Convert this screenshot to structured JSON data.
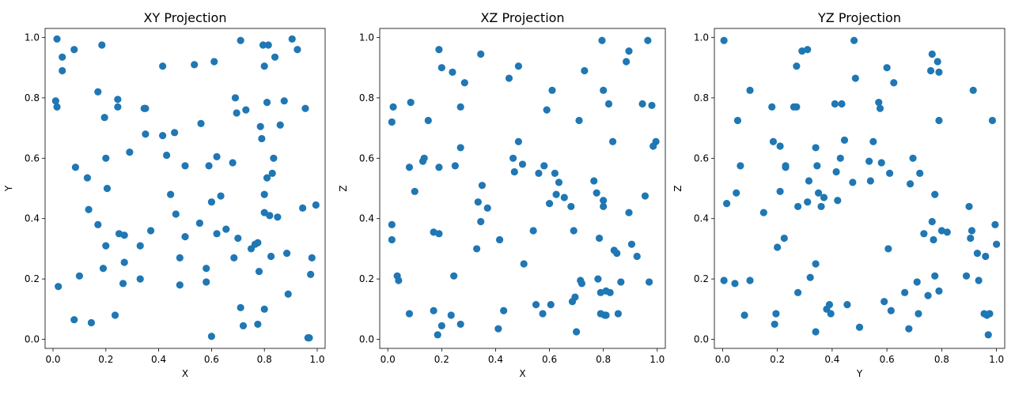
{
  "chart_data": [
    {
      "type": "scatter",
      "title": "XY Projection",
      "xlabel": "X",
      "ylabel": "Y",
      "xlim": [
        -0.03,
        1.03
      ],
      "ylim": [
        -0.03,
        1.03
      ],
      "xticks": [
        0.0,
        0.2,
        0.4,
        0.6,
        0.8,
        1.0
      ],
      "yticks": [
        0.0,
        0.2,
        0.4,
        0.6,
        0.8,
        1.0
      ],
      "xticklabels": [
        "0.0",
        "0.2",
        "0.4",
        "0.6",
        "0.8",
        "1.0"
      ],
      "yticklabels": [
        "0.0",
        "0.2",
        "0.4",
        "0.6",
        "0.8",
        "1.0"
      ],
      "color": "#1f77b4",
      "grid": false,
      "points": [
        [
          0.01,
          0.79
        ],
        [
          0.015,
          0.995
        ],
        [
          0.015,
          0.77
        ],
        [
          0.035,
          0.935
        ],
        [
          0.035,
          0.89
        ],
        [
          0.02,
          0.175
        ],
        [
          0.08,
          0.96
        ],
        [
          0.085,
          0.57
        ],
        [
          0.08,
          0.065
        ],
        [
          0.1,
          0.21
        ],
        [
          0.13,
          0.535
        ],
        [
          0.135,
          0.43
        ],
        [
          0.145,
          0.055
        ],
        [
          0.17,
          0.82
        ],
        [
          0.17,
          0.38
        ],
        [
          0.185,
          0.975
        ],
        [
          0.19,
          0.235
        ],
        [
          0.195,
          0.735
        ],
        [
          0.2,
          0.31
        ],
        [
          0.2,
          0.6
        ],
        [
          0.205,
          0.5
        ],
        [
          0.235,
          0.08
        ],
        [
          0.245,
          0.795
        ],
        [
          0.245,
          0.77
        ],
        [
          0.25,
          0.35
        ],
        [
          0.265,
          0.185
        ],
        [
          0.27,
          0.345
        ],
        [
          0.27,
          0.255
        ],
        [
          0.29,
          0.62
        ],
        [
          0.33,
          0.31
        ],
        [
          0.33,
          0.2
        ],
        [
          0.345,
          0.765
        ],
        [
          0.35,
          0.765
        ],
        [
          0.35,
          0.68
        ],
        [
          0.37,
          0.36
        ],
        [
          0.415,
          0.905
        ],
        [
          0.415,
          0.675
        ],
        [
          0.43,
          0.61
        ],
        [
          0.445,
          0.48
        ],
        [
          0.46,
          0.685
        ],
        [
          0.465,
          0.415
        ],
        [
          0.48,
          0.27
        ],
        [
          0.48,
          0.18
        ],
        [
          0.5,
          0.575
        ],
        [
          0.5,
          0.34
        ],
        [
          0.535,
          0.91
        ],
        [
          0.555,
          0.385
        ],
        [
          0.56,
          0.715
        ],
        [
          0.58,
          0.235
        ],
        [
          0.58,
          0.19
        ],
        [
          0.59,
          0.575
        ],
        [
          0.6,
          0.455
        ],
        [
          0.6,
          0.01
        ],
        [
          0.61,
          0.92
        ],
        [
          0.62,
          0.605
        ],
        [
          0.62,
          0.35
        ],
        [
          0.635,
          0.475
        ],
        [
          0.655,
          0.365
        ],
        [
          0.68,
          0.585
        ],
        [
          0.685,
          0.27
        ],
        [
          0.69,
          0.8
        ],
        [
          0.695,
          0.75
        ],
        [
          0.7,
          0.335
        ],
        [
          0.71,
          0.99
        ],
        [
          0.71,
          0.105
        ],
        [
          0.72,
          0.045
        ],
        [
          0.73,
          0.76
        ],
        [
          0.75,
          0.3
        ],
        [
          0.765,
          0.315
        ],
        [
          0.775,
          0.32
        ],
        [
          0.775,
          0.05
        ],
        [
          0.78,
          0.225
        ],
        [
          0.785,
          0.705
        ],
        [
          0.79,
          0.665
        ],
        [
          0.795,
          0.975
        ],
        [
          0.8,
          0.905
        ],
        [
          0.8,
          0.48
        ],
        [
          0.8,
          0.42
        ],
        [
          0.8,
          0.1
        ],
        [
          0.81,
          0.785
        ],
        [
          0.81,
          0.535
        ],
        [
          0.815,
          0.975
        ],
        [
          0.82,
          0.41
        ],
        [
          0.825,
          0.275
        ],
        [
          0.83,
          0.55
        ],
        [
          0.835,
          0.6
        ],
        [
          0.84,
          0.935
        ],
        [
          0.85,
          0.405
        ],
        [
          0.86,
          0.71
        ],
        [
          0.875,
          0.79
        ],
        [
          0.885,
          0.285
        ],
        [
          0.89,
          0.15
        ],
        [
          0.905,
          0.995
        ],
        [
          0.925,
          0.96
        ],
        [
          0.945,
          0.435
        ],
        [
          0.955,
          0.765
        ],
        [
          0.965,
          0.005
        ],
        [
          0.97,
          0.005
        ],
        [
          0.975,
          0.215
        ],
        [
          0.98,
          0.27
        ],
        [
          0.995,
          0.445
        ]
      ]
    },
    {
      "type": "scatter",
      "title": "XZ Projection",
      "xlabel": "X",
      "ylabel": "Z",
      "xlim": [
        -0.03,
        1.03
      ],
      "ylim": [
        -0.03,
        1.03
      ],
      "xticks": [
        0.0,
        0.2,
        0.4,
        0.6,
        0.8,
        1.0
      ],
      "yticks": [
        0.0,
        0.2,
        0.4,
        0.6,
        0.8,
        1.0
      ],
      "xticklabels": [
        "0.0",
        "0.2",
        "0.4",
        "0.6",
        "0.8",
        "1.0"
      ],
      "yticklabels": [
        "0.0",
        "0.2",
        "0.4",
        "0.6",
        "0.8",
        "1.0"
      ],
      "color": "#1f77b4",
      "grid": false,
      "points": [
        [
          0.015,
          0.72
        ],
        [
          0.02,
          0.77
        ],
        [
          0.015,
          0.38
        ],
        [
          0.015,
          0.33
        ],
        [
          0.035,
          0.21
        ],
        [
          0.04,
          0.195
        ],
        [
          0.08,
          0.57
        ],
        [
          0.085,
          0.785
        ],
        [
          0.1,
          0.49
        ],
        [
          0.08,
          0.085
        ],
        [
          0.13,
          0.59
        ],
        [
          0.135,
          0.6
        ],
        [
          0.15,
          0.725
        ],
        [
          0.17,
          0.355
        ],
        [
          0.17,
          0.095
        ],
        [
          0.19,
          0.96
        ],
        [
          0.19,
          0.57
        ],
        [
          0.19,
          0.35
        ],
        [
          0.185,
          0.015
        ],
        [
          0.2,
          0.9
        ],
        [
          0.2,
          0.045
        ],
        [
          0.24,
          0.885
        ],
        [
          0.235,
          0.08
        ],
        [
          0.245,
          0.21
        ],
        [
          0.25,
          0.575
        ],
        [
          0.27,
          0.77
        ],
        [
          0.27,
          0.635
        ],
        [
          0.27,
          0.05
        ],
        [
          0.285,
          0.85
        ],
        [
          0.335,
          0.455
        ],
        [
          0.33,
          0.3
        ],
        [
          0.345,
          0.945
        ],
        [
          0.345,
          0.39
        ],
        [
          0.35,
          0.51
        ],
        [
          0.37,
          0.435
        ],
        [
          0.41,
          0.035
        ],
        [
          0.415,
          0.33
        ],
        [
          0.43,
          0.095
        ],
        [
          0.45,
          0.865
        ],
        [
          0.465,
          0.6
        ],
        [
          0.47,
          0.555
        ],
        [
          0.485,
          0.905
        ],
        [
          0.485,
          0.655
        ],
        [
          0.5,
          0.58
        ],
        [
          0.505,
          0.25
        ],
        [
          0.54,
          0.36
        ],
        [
          0.55,
          0.115
        ],
        [
          0.56,
          0.55
        ],
        [
          0.575,
          0.085
        ],
        [
          0.58,
          0.575
        ],
        [
          0.59,
          0.76
        ],
        [
          0.6,
          0.45
        ],
        [
          0.605,
          0.115
        ],
        [
          0.61,
          0.825
        ],
        [
          0.62,
          0.55
        ],
        [
          0.625,
          0.48
        ],
        [
          0.635,
          0.52
        ],
        [
          0.655,
          0.47
        ],
        [
          0.68,
          0.44
        ],
        [
          0.685,
          0.125
        ],
        [
          0.69,
          0.36
        ],
        [
          0.695,
          0.14
        ],
        [
          0.7,
          0.025
        ],
        [
          0.71,
          0.725
        ],
        [
          0.715,
          0.195
        ],
        [
          0.72,
          0.185
        ],
        [
          0.73,
          0.89
        ],
        [
          0.765,
          0.525
        ],
        [
          0.775,
          0.485
        ],
        [
          0.78,
          0.2
        ],
        [
          0.785,
          0.335
        ],
        [
          0.79,
          0.085
        ],
        [
          0.79,
          0.155
        ],
        [
          0.795,
          0.99
        ],
        [
          0.8,
          0.825
        ],
        [
          0.8,
          0.46
        ],
        [
          0.8,
          0.44
        ],
        [
          0.805,
          0.08
        ],
        [
          0.81,
          0.08
        ],
        [
          0.81,
          0.16
        ],
        [
          0.82,
          0.78
        ],
        [
          0.825,
          0.155
        ],
        [
          0.835,
          0.655
        ],
        [
          0.84,
          0.295
        ],
        [
          0.85,
          0.285
        ],
        [
          0.855,
          0.085
        ],
        [
          0.865,
          0.19
        ],
        [
          0.885,
          0.92
        ],
        [
          0.895,
          0.955
        ],
        [
          0.895,
          0.42
        ],
        [
          0.905,
          0.315
        ],
        [
          0.925,
          0.275
        ],
        [
          0.945,
          0.78
        ],
        [
          0.955,
          0.475
        ],
        [
          0.965,
          0.99
        ],
        [
          0.97,
          0.19
        ],
        [
          0.98,
          0.775
        ],
        [
          0.985,
          0.64
        ],
        [
          0.995,
          0.655
        ]
      ]
    },
    {
      "type": "scatter",
      "title": "YZ Projection",
      "xlabel": "Y",
      "ylabel": "Z",
      "xlim": [
        -0.03,
        1.03
      ],
      "ylim": [
        -0.03,
        1.03
      ],
      "xticks": [
        0.0,
        0.2,
        0.4,
        0.6,
        0.8,
        1.0
      ],
      "yticks": [
        0.0,
        0.2,
        0.4,
        0.6,
        0.8,
        1.0
      ],
      "xticklabels": [
        "0.0",
        "0.2",
        "0.4",
        "0.6",
        "0.8",
        "1.0"
      ],
      "yticklabels": [
        "0.0",
        "0.2",
        "0.4",
        "0.6",
        "0.8",
        "1.0"
      ],
      "color": "#1f77b4",
      "grid": false,
      "points": [
        [
          0.005,
          0.99
        ],
        [
          0.005,
          0.195
        ],
        [
          0.015,
          0.45
        ],
        [
          0.045,
          0.185
        ],
        [
          0.05,
          0.485
        ],
        [
          0.055,
          0.725
        ],
        [
          0.065,
          0.575
        ],
        [
          0.08,
          0.08
        ],
        [
          0.1,
          0.825
        ],
        [
          0.1,
          0.195
        ],
        [
          0.15,
          0.42
        ],
        [
          0.18,
          0.77
        ],
        [
          0.185,
          0.655
        ],
        [
          0.19,
          0.05
        ],
        [
          0.195,
          0.085
        ],
        [
          0.2,
          0.305
        ],
        [
          0.21,
          0.64
        ],
        [
          0.21,
          0.49
        ],
        [
          0.225,
          0.335
        ],
        [
          0.23,
          0.575
        ],
        [
          0.23,
          0.57
        ],
        [
          0.26,
          0.77
        ],
        [
          0.27,
          0.905
        ],
        [
          0.27,
          0.77
        ],
        [
          0.275,
          0.44
        ],
        [
          0.275,
          0.155
        ],
        [
          0.29,
          0.955
        ],
        [
          0.31,
          0.96
        ],
        [
          0.31,
          0.455
        ],
        [
          0.315,
          0.525
        ],
        [
          0.32,
          0.205
        ],
        [
          0.34,
          0.635
        ],
        [
          0.34,
          0.25
        ],
        [
          0.34,
          0.025
        ],
        [
          0.345,
          0.575
        ],
        [
          0.35,
          0.485
        ],
        [
          0.36,
          0.44
        ],
        [
          0.37,
          0.47
        ],
        [
          0.38,
          0.1
        ],
        [
          0.39,
          0.115
        ],
        [
          0.395,
          0.085
        ],
        [
          0.41,
          0.78
        ],
        [
          0.415,
          0.555
        ],
        [
          0.42,
          0.46
        ],
        [
          0.43,
          0.6
        ],
        [
          0.435,
          0.78
        ],
        [
          0.445,
          0.66
        ],
        [
          0.455,
          0.115
        ],
        [
          0.475,
          0.52
        ],
        [
          0.48,
          0.99
        ],
        [
          0.485,
          0.865
        ],
        [
          0.5,
          0.04
        ],
        [
          0.535,
          0.59
        ],
        [
          0.54,
          0.525
        ],
        [
          0.55,
          0.655
        ],
        [
          0.57,
          0.785
        ],
        [
          0.575,
          0.765
        ],
        [
          0.58,
          0.585
        ],
        [
          0.59,
          0.125
        ],
        [
          0.6,
          0.9
        ],
        [
          0.605,
          0.3
        ],
        [
          0.61,
          0.55
        ],
        [
          0.615,
          0.095
        ],
        [
          0.625,
          0.85
        ],
        [
          0.665,
          0.155
        ],
        [
          0.68,
          0.035
        ],
        [
          0.685,
          0.515
        ],
        [
          0.695,
          0.6
        ],
        [
          0.71,
          0.19
        ],
        [
          0.715,
          0.085
        ],
        [
          0.72,
          0.55
        ],
        [
          0.735,
          0.35
        ],
        [
          0.75,
          0.145
        ],
        [
          0.76,
          0.89
        ],
        [
          0.765,
          0.945
        ],
        [
          0.765,
          0.39
        ],
        [
          0.77,
          0.33
        ],
        [
          0.775,
          0.48
        ],
        [
          0.775,
          0.21
        ],
        [
          0.785,
          0.92
        ],
        [
          0.79,
          0.885
        ],
        [
          0.79,
          0.725
        ],
        [
          0.79,
          0.16
        ],
        [
          0.8,
          0.36
        ],
        [
          0.82,
          0.355
        ],
        [
          0.89,
          0.21
        ],
        [
          0.9,
          0.44
        ],
        [
          0.905,
          0.335
        ],
        [
          0.91,
          0.36
        ],
        [
          0.915,
          0.825
        ],
        [
          0.93,
          0.285
        ],
        [
          0.935,
          0.195
        ],
        [
          0.955,
          0.085
        ],
        [
          0.96,
          0.275
        ],
        [
          0.965,
          0.08
        ],
        [
          0.97,
          0.015
        ],
        [
          0.975,
          0.085
        ],
        [
          0.985,
          0.725
        ],
        [
          0.995,
          0.38
        ],
        [
          1.0,
          0.315
        ]
      ]
    }
  ]
}
